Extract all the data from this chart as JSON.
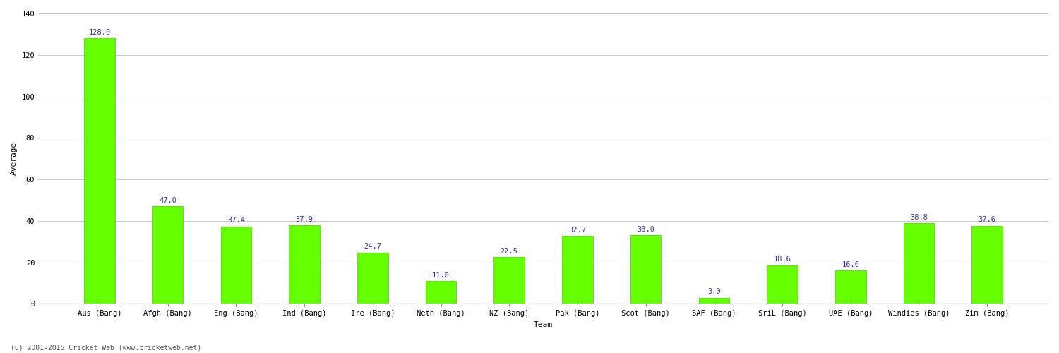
{
  "categories": [
    "Aus (Bang)",
    "Afgh (Bang)",
    "Eng (Bang)",
    "Ind (Bang)",
    "Ire (Bang)",
    "Neth (Bang)",
    "NZ (Bang)",
    "Pak (Bang)",
    "Scot (Bang)",
    "SAF (Bang)",
    "SriL (Bang)",
    "UAE (Bang)",
    "Windies (Bang)",
    "Zim (Bang)"
  ],
  "values": [
    128.0,
    47.0,
    37.4,
    37.9,
    24.7,
    11.0,
    22.5,
    32.7,
    33.0,
    3.0,
    18.6,
    16.0,
    38.8,
    37.6
  ],
  "bar_color": "#66ff00",
  "bar_edge_color": "#44cc00",
  "value_color": "#3333aa",
  "xlabel": "Team",
  "ylabel": "Average",
  "ylim": [
    0,
    140
  ],
  "yticks": [
    0,
    20,
    40,
    60,
    80,
    100,
    120,
    140
  ],
  "grid_color": "#cccccc",
  "bg_color": "#ffffff",
  "footer": "(C) 2001-2015 Cricket Web (www.cricketweb.net)",
  "value_fontsize": 7.5,
  "label_fontsize": 7.5,
  "axis_label_fontsize": 8,
  "bar_width": 0.45
}
